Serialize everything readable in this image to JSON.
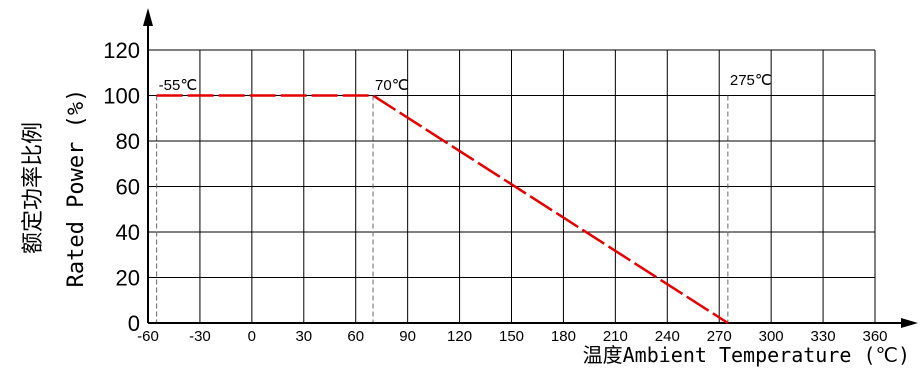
{
  "chart_data": {
    "type": "line",
    "xlabel": "温度Ambient Temperature (℃)",
    "ylabel_cn": "额定功率比例",
    "ylabel": "Rated Power (%)",
    "xlim": [
      -60,
      360
    ],
    "ylim": [
      0,
      120
    ],
    "x_ticks": [
      -60,
      -30,
      0,
      30,
      60,
      90,
      120,
      150,
      180,
      210,
      240,
      270,
      300,
      330,
      360
    ],
    "y_ticks": [
      0,
      20,
      40,
      60,
      80,
      100,
      120
    ],
    "grid": true,
    "series": [
      {
        "x": [
          -55,
          70,
          275
        ],
        "y": [
          100,
          100,
          0
        ],
        "color": "#e60000",
        "style": "dashed"
      }
    ],
    "reference_lines": [
      -55,
      70,
      275
    ],
    "annotations": [
      {
        "text": "-55℃",
        "x": -55,
        "y": 100
      },
      {
        "text": "70℃",
        "x": 70,
        "y": 100
      },
      {
        "text": "275℃",
        "x": 275,
        "y": 0
      }
    ]
  }
}
